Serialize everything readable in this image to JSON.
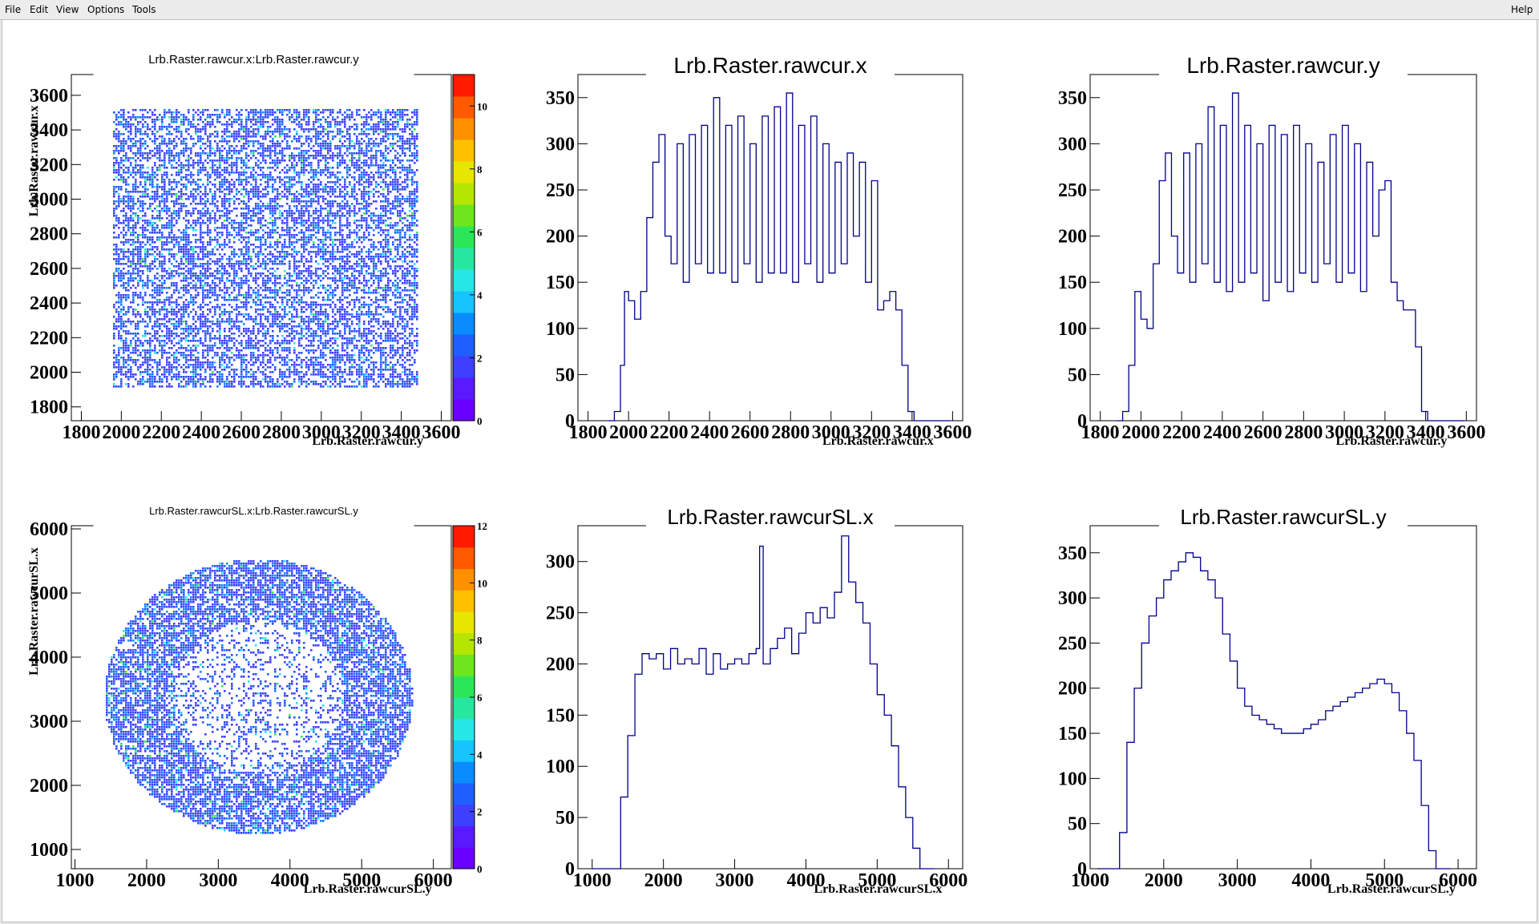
{
  "menubar": {
    "items": [
      "File",
      "Edit",
      "View",
      "Options",
      "Tools"
    ],
    "help": "Help"
  },
  "colors": {
    "histogram_line": "#00008b",
    "frame": "#000000",
    "palette": [
      "#6a00ff",
      "#5a1aff",
      "#3f3fff",
      "#1f5fff",
      "#0a8cff",
      "#16c4ff",
      "#27e6e6",
      "#27e6a0",
      "#2ce65a",
      "#6ee61e",
      "#b4e600",
      "#e6e600",
      "#ffc000",
      "#ff9000",
      "#ff5a00",
      "#ff1a00"
    ]
  },
  "chart_data": [
    {
      "type": "heatmap",
      "title": "Lrb.Raster.rawcur.x:Lrb.Raster.rawcur.y",
      "xlabel": "Lrb.Raster.rawcur.y",
      "ylabel": "Lrb.Raster.rawcur.x",
      "xlim": [
        1750,
        3650
      ],
      "ylim": [
        1720,
        3720
      ],
      "xticks": [
        "1800",
        "2000",
        "2200",
        "2400",
        "2600",
        "2800",
        "3000",
        "3200",
        "3400",
        "3600"
      ],
      "yticks": [
        "1800",
        "2000",
        "2200",
        "2400",
        "2600",
        "2800",
        "3000",
        "3200",
        "3400",
        "3600"
      ],
      "zlim": [
        0,
        11
      ],
      "zticks": [
        "0",
        "2",
        "4",
        "6",
        "8",
        "10"
      ],
      "density": {
        "shape": "rectangle",
        "x_range": [
          1950,
          3480
        ],
        "y_range": [
          1920,
          3530
        ]
      }
    },
    {
      "type": "line",
      "title": "Lrb.Raster.rawcur.x",
      "xlabel": "Lrb.Raster.rawcur.x",
      "ylabel": "",
      "xlim": [
        1750,
        3650
      ],
      "ylim": [
        0,
        375
      ],
      "xticks": [
        "1800",
        "2000",
        "2200",
        "2400",
        "2600",
        "2800",
        "3000",
        "3200",
        "3400",
        "3600"
      ],
      "yticks": [
        "0",
        "50",
        "100",
        "150",
        "200",
        "250",
        "300",
        "350"
      ],
      "x": [
        1900,
        1930,
        1960,
        1980,
        2000,
        2030,
        2060,
        2090,
        2120,
        2150,
        2180,
        2210,
        2240,
        2270,
        2300,
        2330,
        2360,
        2390,
        2420,
        2450,
        2480,
        2510,
        2540,
        2570,
        2600,
        2630,
        2660,
        2690,
        2720,
        2750,
        2780,
        2810,
        2840,
        2870,
        2900,
        2930,
        2960,
        2990,
        3020,
        3050,
        3080,
        3110,
        3140,
        3170,
        3200,
        3230,
        3260,
        3290,
        3320,
        3350,
        3380,
        3410,
        3440,
        3470,
        3500,
        3530,
        3560
      ],
      "y": [
        0,
        10,
        60,
        140,
        130,
        110,
        140,
        220,
        280,
        310,
        200,
        170,
        300,
        150,
        310,
        170,
        320,
        160,
        350,
        160,
        320,
        150,
        330,
        170,
        300,
        150,
        330,
        160,
        340,
        160,
        355,
        150,
        320,
        170,
        330,
        150,
        300,
        160,
        280,
        170,
        290,
        200,
        280,
        150,
        260,
        120,
        130,
        140,
        120,
        60,
        10,
        0,
        0,
        0,
        0,
        0,
        0
      ]
    },
    {
      "type": "line",
      "title": "Lrb.Raster.rawcur.y",
      "xlabel": "Lrb.Raster.rawcur.y",
      "ylabel": "",
      "xlim": [
        1750,
        3650
      ],
      "ylim": [
        0,
        375
      ],
      "xticks": [
        "1800",
        "2000",
        "2200",
        "2400",
        "2600",
        "2800",
        "3000",
        "3200",
        "3400",
        "3600"
      ],
      "yticks": [
        "0",
        "50",
        "100",
        "150",
        "200",
        "250",
        "300",
        "350"
      ],
      "x": [
        1880,
        1910,
        1940,
        1970,
        2000,
        2030,
        2060,
        2090,
        2120,
        2150,
        2180,
        2210,
        2240,
        2270,
        2300,
        2330,
        2360,
        2390,
        2420,
        2450,
        2480,
        2510,
        2540,
        2570,
        2600,
        2630,
        2660,
        2690,
        2720,
        2750,
        2780,
        2810,
        2840,
        2870,
        2900,
        2930,
        2960,
        2990,
        3020,
        3050,
        3080,
        3110,
        3140,
        3170,
        3200,
        3230,
        3260,
        3290,
        3320,
        3350,
        3380,
        3410,
        3440,
        3470,
        3500,
        3530,
        3560
      ],
      "y": [
        0,
        10,
        60,
        140,
        110,
        100,
        170,
        260,
        290,
        200,
        160,
        290,
        150,
        300,
        170,
        340,
        150,
        320,
        140,
        355,
        150,
        320,
        160,
        300,
        130,
        320,
        150,
        310,
        140,
        320,
        160,
        300,
        150,
        280,
        170,
        310,
        150,
        320,
        160,
        300,
        140,
        280,
        200,
        250,
        260,
        150,
        130,
        120,
        120,
        80,
        10,
        0,
        0,
        0,
        0,
        0,
        0
      ]
    },
    {
      "type": "heatmap",
      "title": "Lrb.Raster.rawcurSL.x:Lrb.Raster.rawcurSL.y",
      "xlabel": "Lrb.Raster.rawcurSL.y",
      "ylabel": "Lrb.Raster.rawcurSL.x",
      "xlim": [
        950,
        6250
      ],
      "ylim": [
        700,
        6050
      ],
      "xticks": [
        "1000",
        "2000",
        "3000",
        "4000",
        "5000",
        "6000"
      ],
      "yticks": [
        "1000",
        "2000",
        "3000",
        "4000",
        "5000",
        "6000"
      ],
      "zlim": [
        0,
        12
      ],
      "zticks": [
        "0",
        "2",
        "4",
        "6",
        "8",
        "10",
        "12"
      ],
      "density": {
        "shape": "disk",
        "center": [
          3550,
          3400
        ],
        "radius_x": 2150,
        "radius_y": 2150
      }
    },
    {
      "type": "line",
      "title": "Lrb.Raster.rawcurSL.x",
      "xlabel": "Lrb.Raster.rawcurSL.x",
      "ylabel": "",
      "xlim": [
        800,
        6200
      ],
      "ylim": [
        0,
        335
      ],
      "xticks": [
        "1000",
        "2000",
        "3000",
        "4000",
        "5000",
        "6000"
      ],
      "yticks": [
        "0",
        "50",
        "100",
        "150",
        "200",
        "250",
        "300"
      ],
      "x": [
        1000,
        1100,
        1200,
        1300,
        1400,
        1500,
        1600,
        1700,
        1800,
        1900,
        2000,
        2100,
        2200,
        2300,
        2400,
        2500,
        2600,
        2700,
        2800,
        2900,
        3000,
        3100,
        3200,
        3300,
        3350,
        3400,
        3500,
        3600,
        3700,
        3800,
        3900,
        4000,
        4100,
        4200,
        4300,
        4400,
        4500,
        4600,
        4700,
        4800,
        4900,
        5000,
        5100,
        5200,
        5300,
        5400,
        5500,
        5600,
        5700
      ],
      "y": [
        0,
        0,
        0,
        0,
        70,
        130,
        190,
        210,
        205,
        210,
        195,
        215,
        200,
        205,
        200,
        215,
        190,
        210,
        195,
        200,
        205,
        200,
        210,
        215,
        315,
        200,
        215,
        225,
        235,
        210,
        230,
        250,
        240,
        255,
        245,
        270,
        325,
        280,
        260,
        240,
        200,
        170,
        150,
        120,
        80,
        50,
        20,
        0,
        0
      ]
    },
    {
      "type": "line",
      "title": "Lrb.Raster.rawcurSL.y",
      "xlabel": "Lrb.Raster.rawcurSL.y",
      "ylabel": "",
      "xlim": [
        1000,
        6250
      ],
      "ylim": [
        0,
        380
      ],
      "xticks": [
        "1000",
        "2000",
        "3000",
        "4000",
        "5000",
        "6000"
      ],
      "yticks": [
        "0",
        "50",
        "100",
        "150",
        "200",
        "250",
        "300",
        "350"
      ],
      "x": [
        1100,
        1200,
        1300,
        1400,
        1500,
        1600,
        1700,
        1800,
        1900,
        2000,
        2100,
        2200,
        2300,
        2400,
        2500,
        2600,
        2700,
        2800,
        2900,
        3000,
        3100,
        3200,
        3300,
        3400,
        3500,
        3600,
        3700,
        3800,
        3900,
        4000,
        4100,
        4200,
        4300,
        4400,
        4500,
        4600,
        4700,
        4800,
        4900,
        5000,
        5100,
        5200,
        5300,
        5400,
        5500,
        5600,
        5700,
        5800
      ],
      "y": [
        0,
        0,
        0,
        40,
        140,
        200,
        250,
        280,
        300,
        320,
        330,
        340,
        350,
        345,
        330,
        320,
        300,
        260,
        230,
        200,
        180,
        170,
        165,
        160,
        155,
        150,
        150,
        150,
        155,
        160,
        165,
        175,
        180,
        185,
        190,
        195,
        200,
        205,
        210,
        205,
        195,
        175,
        150,
        120,
        70,
        20,
        0,
        0
      ]
    }
  ]
}
